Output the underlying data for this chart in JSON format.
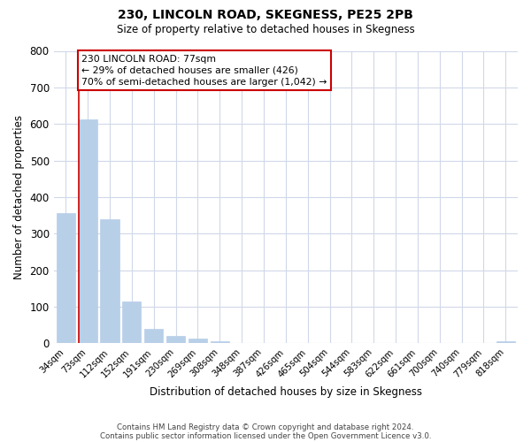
{
  "title": "230, LINCOLN ROAD, SKEGNESS, PE25 2PB",
  "subtitle": "Size of property relative to detached houses in Skegness",
  "xlabel": "Distribution of detached houses by size in Skegness",
  "ylabel": "Number of detached properties",
  "bar_labels": [
    "34sqm",
    "73sqm",
    "112sqm",
    "152sqm",
    "191sqm",
    "230sqm",
    "269sqm",
    "308sqm",
    "348sqm",
    "387sqm",
    "426sqm",
    "465sqm",
    "504sqm",
    "544sqm",
    "583sqm",
    "622sqm",
    "661sqm",
    "700sqm",
    "740sqm",
    "779sqm",
    "818sqm"
  ],
  "bar_values": [
    355,
    612,
    340,
    113,
    40,
    20,
    13,
    5,
    0,
    0,
    0,
    0,
    0,
    0,
    0,
    0,
    0,
    0,
    0,
    0,
    5
  ],
  "bar_color": "#b8cfe8",
  "property_line_x": 0.575,
  "annotation_title": "230 LINCOLN ROAD: 77sqm",
  "annotation_line1": "← 29% of detached houses are smaller (426)",
  "annotation_line2": "70% of semi-detached houses are larger (1,042) →",
  "marker_line_color": "#cc0000",
  "annotation_box_color": "#ffffff",
  "annotation_box_edge": "#cc0000",
  "background_color": "#ffffff",
  "grid_color": "#d0d8e8",
  "footer_line1": "Contains HM Land Registry data © Crown copyright and database right 2024.",
  "footer_line2": "Contains public sector information licensed under the Open Government Licence v3.0.",
  "ylim": [
    0,
    800
  ],
  "yticks": [
    0,
    100,
    200,
    300,
    400,
    500,
    600,
    700,
    800
  ]
}
